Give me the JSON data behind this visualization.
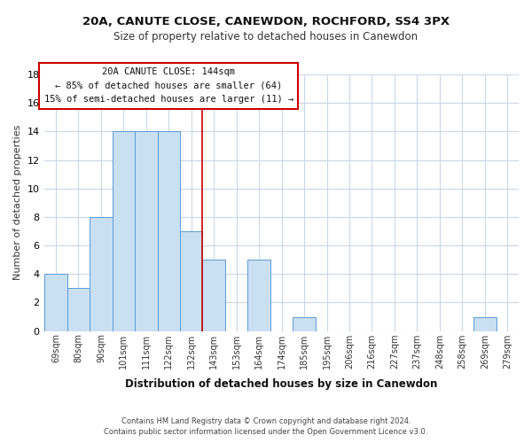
{
  "title": "20A, CANUTE CLOSE, CANEWDON, ROCHFORD, SS4 3PX",
  "subtitle": "Size of property relative to detached houses in Canewdon",
  "xlabel": "Distribution of detached houses by size in Canewdon",
  "ylabel": "Number of detached properties",
  "bar_labels": [
    "69sqm",
    "80sqm",
    "90sqm",
    "101sqm",
    "111sqm",
    "122sqm",
    "132sqm",
    "143sqm",
    "153sqm",
    "164sqm",
    "174sqm",
    "185sqm",
    "195sqm",
    "206sqm",
    "216sqm",
    "227sqm",
    "237sqm",
    "248sqm",
    "258sqm",
    "269sqm",
    "279sqm"
  ],
  "bar_values": [
    4,
    3,
    8,
    14,
    14,
    14,
    7,
    5,
    0,
    5,
    0,
    1,
    0,
    0,
    0,
    0,
    0,
    0,
    0,
    1,
    0
  ],
  "bar_color": "#c9dff2",
  "bar_edge_color": "#5b9bd5",
  "highlight_line_index": 7,
  "ylim": [
    0,
    18
  ],
  "yticks": [
    0,
    2,
    4,
    6,
    8,
    10,
    12,
    14,
    16,
    18
  ],
  "annotation_title": "20A CANUTE CLOSE: 144sqm",
  "annotation_line1": "← 85% of detached houses are smaller (64)",
  "annotation_line2": "15% of semi-detached houses are larger (11) →",
  "annotation_box_edge": "#cc0000",
  "highlight_line_color": "#cc0000",
  "footer1": "Contains HM Land Registry data © Crown copyright and database right 2024.",
  "footer2": "Contains public sector information licensed under the Open Government Licence v3.0.",
  "background_color": "#ffffff",
  "grid_color": "#c8d8e8"
}
